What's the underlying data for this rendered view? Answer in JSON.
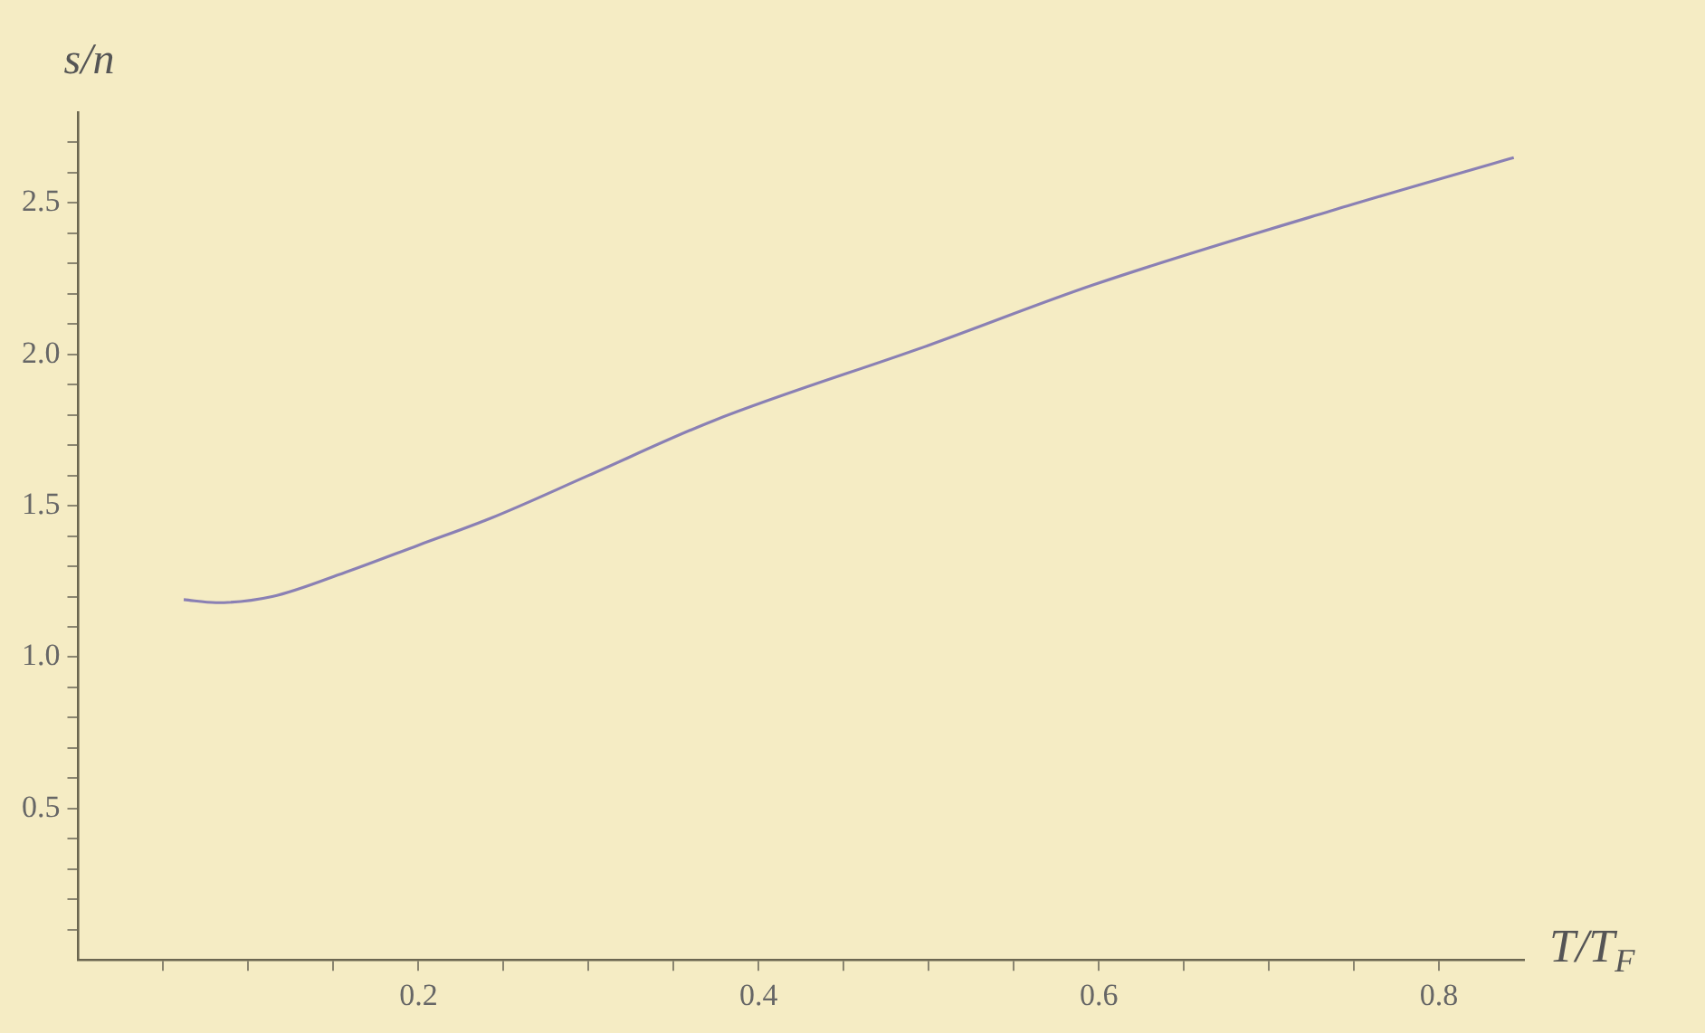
{
  "chart_data": {
    "type": "line",
    "xlabel": "T/T$_{F}$",
    "ylabel": "s/n",
    "x": [
      0.062,
      0.081,
      0.114,
      0.157,
      0.2,
      0.243,
      0.3,
      0.373,
      0.5,
      0.597,
      0.746,
      0.844
    ],
    "series": [
      {
        "color": "#8a80b4",
        "values": [
          1.19,
          1.18,
          1.2,
          1.28,
          1.37,
          1.46,
          1.6,
          1.78,
          2.03,
          2.23,
          2.49,
          2.65
        ]
      }
    ],
    "xlim": [
      0,
      0.85
    ],
    "ylim": [
      0,
      2.8
    ],
    "xticks": [
      {
        "value": 0.05,
        "label": null
      },
      {
        "value": 0.1,
        "label": null
      },
      {
        "value": 0.15,
        "label": null
      },
      {
        "value": 0.2,
        "label": "0.2"
      },
      {
        "value": 0.25,
        "label": null
      },
      {
        "value": 0.3,
        "label": null
      },
      {
        "value": 0.35,
        "label": null
      },
      {
        "value": 0.4,
        "label": "0.4"
      },
      {
        "value": 0.45,
        "label": null
      },
      {
        "value": 0.5,
        "label": null
      },
      {
        "value": 0.55,
        "label": null
      },
      {
        "value": 0.6,
        "label": "0.6"
      },
      {
        "value": 0.65,
        "label": null
      },
      {
        "value": 0.7,
        "label": null
      },
      {
        "value": 0.75,
        "label": null
      },
      {
        "value": 0.8,
        "label": "0.8"
      }
    ],
    "yticks": [
      {
        "value": 0.1,
        "label": null
      },
      {
        "value": 0.2,
        "label": null
      },
      {
        "value": 0.3,
        "label": null
      },
      {
        "value": 0.4,
        "label": null
      },
      {
        "value": 0.5,
        "label": "0.5"
      },
      {
        "value": 0.6,
        "label": null
      },
      {
        "value": 0.7,
        "label": null
      },
      {
        "value": 0.8,
        "label": null
      },
      {
        "value": 0.9,
        "label": null
      },
      {
        "value": 1.0,
        "label": "1.0"
      },
      {
        "value": 1.1,
        "label": null
      },
      {
        "value": 1.2,
        "label": null
      },
      {
        "value": 1.3,
        "label": null
      },
      {
        "value": 1.4,
        "label": null
      },
      {
        "value": 1.5,
        "label": "1.5"
      },
      {
        "value": 1.6,
        "label": null
      },
      {
        "value": 1.7,
        "label": null
      },
      {
        "value": 1.8,
        "label": null
      },
      {
        "value": 1.9,
        "label": null
      },
      {
        "value": 2.0,
        "label": "2.0"
      },
      {
        "value": 2.1,
        "label": null
      },
      {
        "value": 2.2,
        "label": null
      },
      {
        "value": 2.3,
        "label": null
      },
      {
        "value": 2.4,
        "label": null
      },
      {
        "value": 2.5,
        "label": "2.5"
      },
      {
        "value": 2.6,
        "label": null
      },
      {
        "value": 2.7,
        "label": null
      }
    ],
    "grid": false,
    "legend": false,
    "marker": "none",
    "line_style": "solid"
  }
}
